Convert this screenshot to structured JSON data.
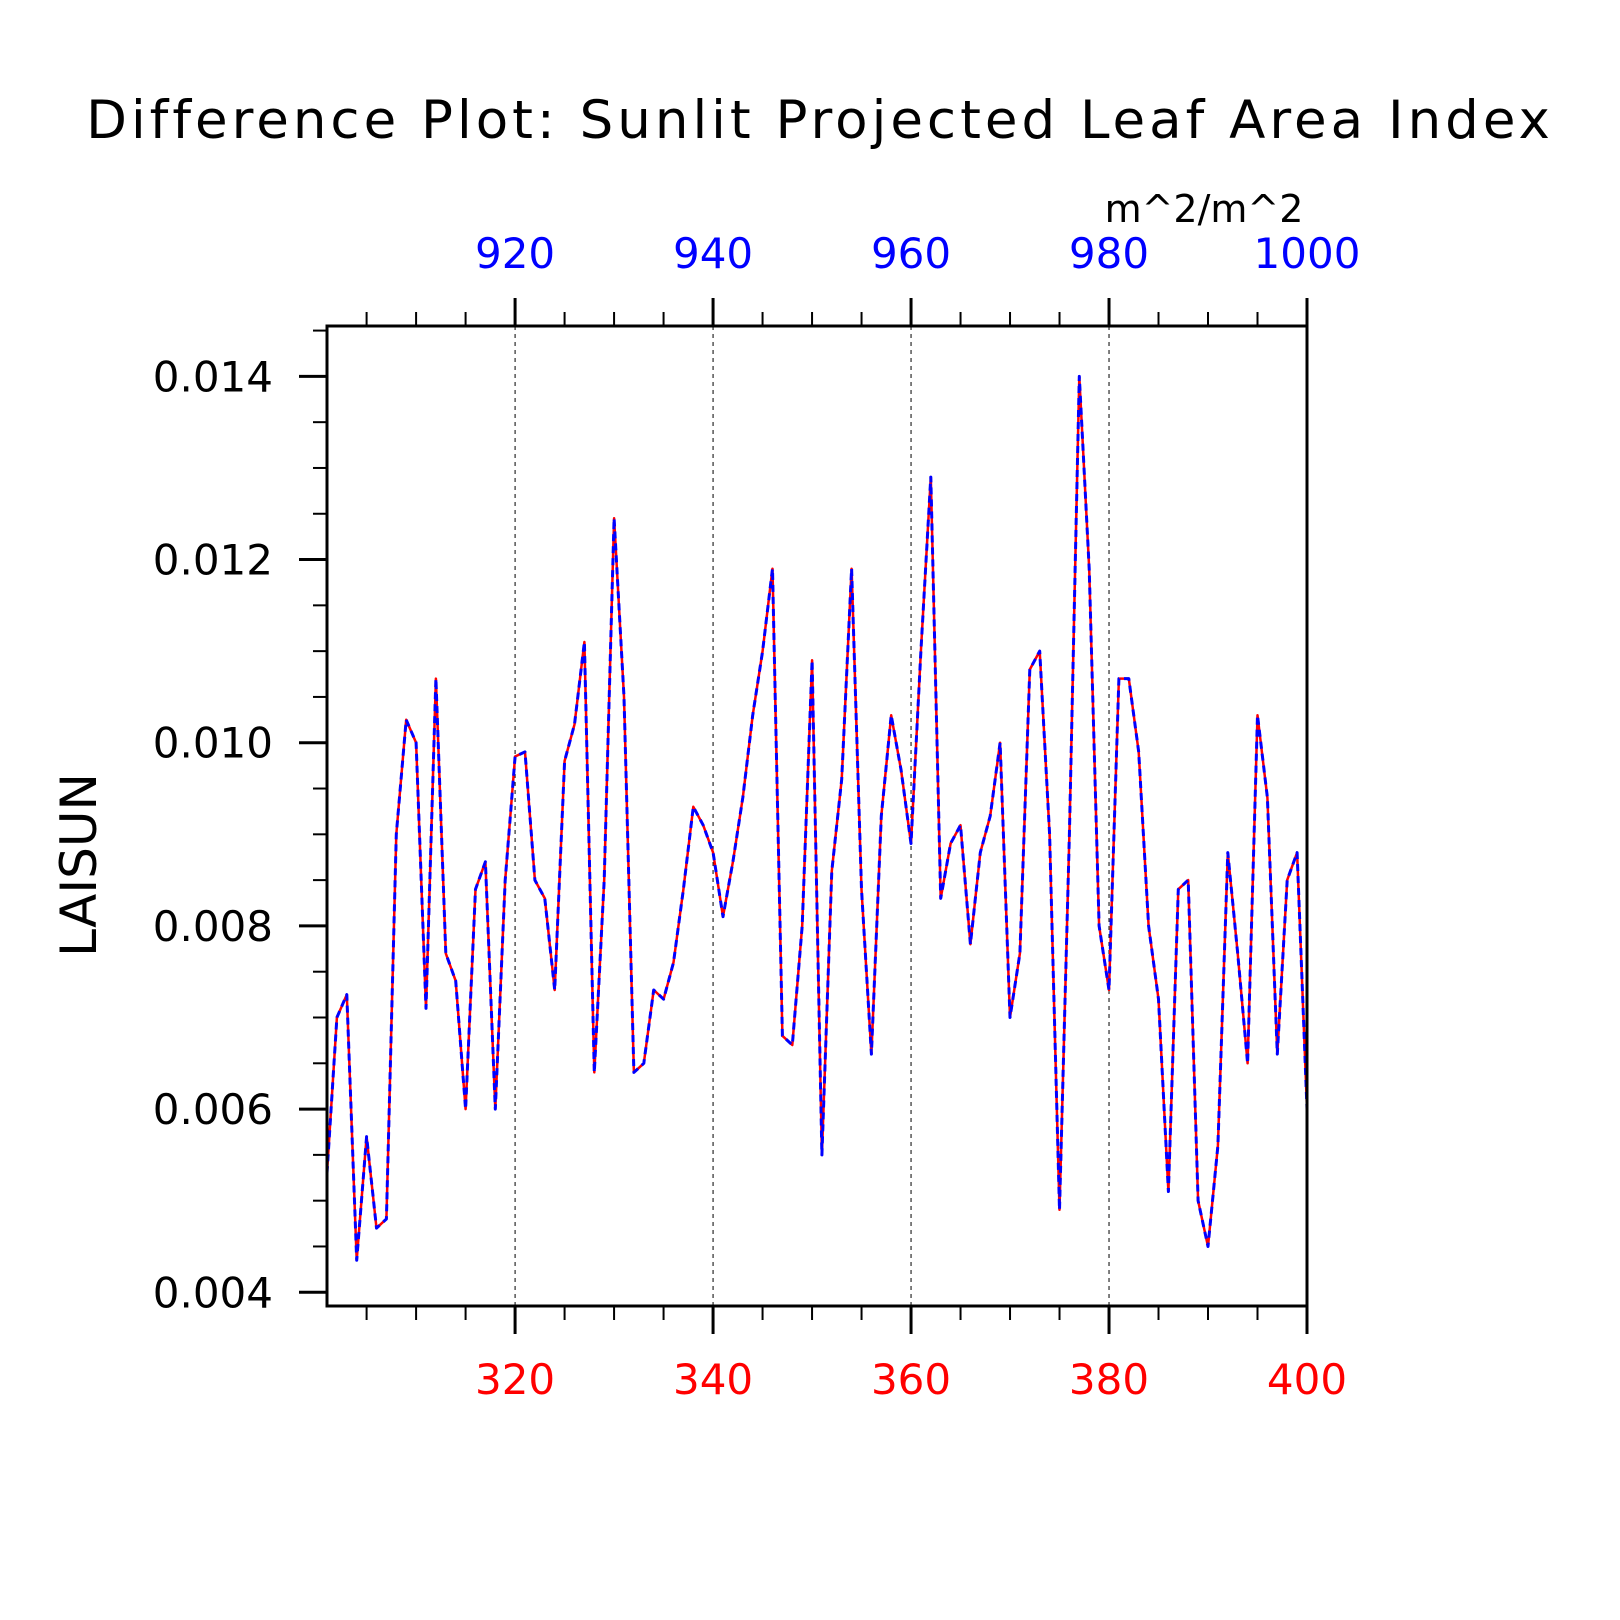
{
  "chart_data": {
    "type": "line",
    "title": "Difference Plot: Sunlit Projected Leaf Area Index",
    "units": "m^2/m^2",
    "ylabel": "LAISUN",
    "xlim": [
      301,
      400
    ],
    "top_xlim": [
      901,
      1000
    ],
    "ylim": [
      0.00385,
      0.01455
    ],
    "bottom_ticks": [
      320,
      340,
      360,
      380,
      400
    ],
    "top_ticks": [
      920,
      940,
      960,
      980,
      1000
    ],
    "y_ticks": [
      0.004,
      0.006,
      0.008,
      0.01,
      0.012,
      0.014
    ],
    "y_tick_labels": [
      "0.004",
      "0.006",
      "0.008",
      "0.010",
      "0.012",
      "0.014"
    ],
    "grid": "vertical dashed at major bottom ticks",
    "colors": {
      "bottom_axis": "#ff0000",
      "top_axis": "#0000ff",
      "series_a": "#ff0000",
      "series_b": "#0000ff",
      "frame": "#000000"
    },
    "x": [
      301,
      302,
      303,
      304,
      305,
      306,
      307,
      308,
      309,
      310,
      311,
      312,
      313,
      314,
      315,
      316,
      317,
      318,
      319,
      320,
      321,
      322,
      323,
      324,
      325,
      326,
      327,
      328,
      329,
      330,
      331,
      332,
      333,
      334,
      335,
      336,
      337,
      338,
      339,
      340,
      341,
      342,
      343,
      344,
      345,
      346,
      347,
      348,
      349,
      350,
      351,
      352,
      353,
      354,
      355,
      356,
      357,
      358,
      359,
      360,
      361,
      362,
      363,
      364,
      365,
      366,
      367,
      368,
      369,
      370,
      371,
      372,
      373,
      374,
      375,
      376,
      377,
      378,
      379,
      380,
      381,
      382,
      383,
      384,
      385,
      386,
      387,
      388,
      389,
      390,
      391,
      392,
      393,
      394,
      395,
      396,
      397,
      398,
      399,
      400
    ],
    "series": [
      {
        "values": [
          0.0053,
          0.007,
          0.00725,
          0.00435,
          0.0057,
          0.0047,
          0.0048,
          0.009,
          0.01025,
          0.01,
          0.0071,
          0.0107,
          0.0077,
          0.0074,
          0.006,
          0.0084,
          0.0087,
          0.006,
          0.0085,
          0.00985,
          0.0099,
          0.0085,
          0.0083,
          0.0073,
          0.0098,
          0.0102,
          0.0111,
          0.0064,
          0.0085,
          0.01245,
          0.0105,
          0.0064,
          0.0065,
          0.0073,
          0.0072,
          0.0076,
          0.0084,
          0.0093,
          0.0091,
          0.0088,
          0.0081,
          0.0087,
          0.0094,
          0.0103,
          0.011,
          0.0119,
          0.0068,
          0.0067,
          0.008,
          0.0109,
          0.0055,
          0.0086,
          0.0096,
          0.0119,
          0.0084,
          0.0066,
          0.0092,
          0.0103,
          0.0097,
          0.0089,
          0.011,
          0.0129,
          0.0083,
          0.0089,
          0.0091,
          0.0078,
          0.0088,
          0.0092,
          0.01,
          0.007,
          0.0077,
          0.0108,
          0.011,
          0.009,
          0.0049,
          0.009,
          0.014,
          0.0119,
          0.008,
          0.0073,
          0.0107,
          0.0107,
          0.0099,
          0.008,
          0.0072,
          0.0051,
          0.0084,
          0.0085,
          0.005,
          0.0045,
          0.0056,
          0.0088,
          0.0077,
          0.0065,
          0.0103,
          0.0094,
          0.0066,
          0.0085,
          0.0088,
          0.006
        ]
      }
    ]
  }
}
